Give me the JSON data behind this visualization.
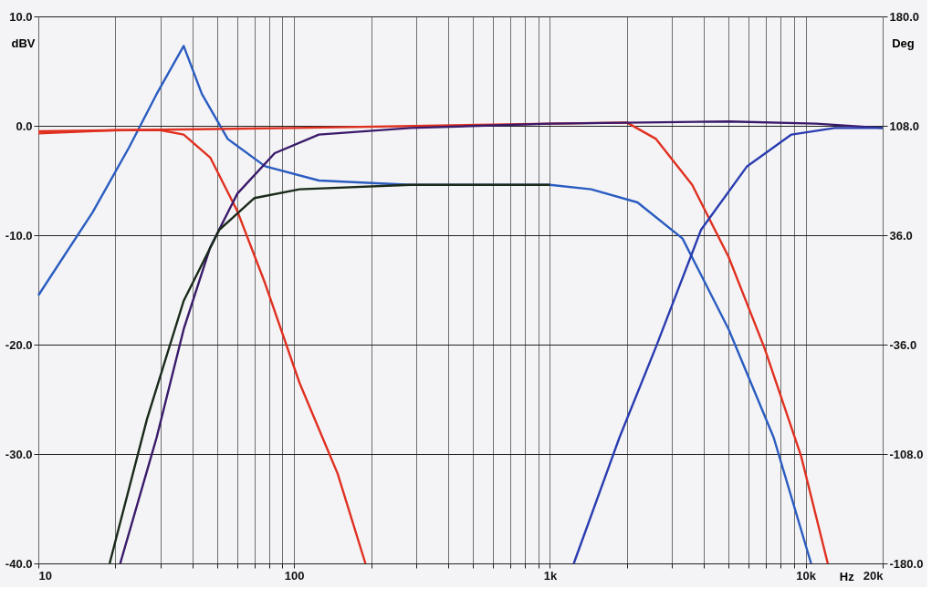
{
  "chart_data": {
    "type": "line",
    "xlabel": "Hz",
    "ylabel": "dBV",
    "y2label": "Deg",
    "log": "x",
    "grid": true,
    "legend": false,
    "line_style": "solid",
    "xlim": [
      10,
      20000
    ],
    "xticks": [
      {
        "value": 10,
        "label": "10"
      },
      {
        "value": 20,
        "label": null
      },
      {
        "value": 30,
        "label": null
      },
      {
        "value": 40,
        "label": null
      },
      {
        "value": 50,
        "label": null
      },
      {
        "value": 60,
        "label": null
      },
      {
        "value": 70,
        "label": null
      },
      {
        "value": 80,
        "label": null
      },
      {
        "value": 90,
        "label": null
      },
      {
        "value": 100,
        "label": "100"
      },
      {
        "value": 200,
        "label": null
      },
      {
        "value": 300,
        "label": null
      },
      {
        "value": 400,
        "label": null
      },
      {
        "value": 500,
        "label": null
      },
      {
        "value": 600,
        "label": null
      },
      {
        "value": 700,
        "label": null
      },
      {
        "value": 800,
        "label": null
      },
      {
        "value": 900,
        "label": null
      },
      {
        "value": 1000,
        "label": "1k"
      },
      {
        "value": 2000,
        "label": null
      },
      {
        "value": 3000,
        "label": null
      },
      {
        "value": 4000,
        "label": null
      },
      {
        "value": 5000,
        "label": null
      },
      {
        "value": 6000,
        "label": null
      },
      {
        "value": 7000,
        "label": null
      },
      {
        "value": 8000,
        "label": null
      },
      {
        "value": 9000,
        "label": null
      },
      {
        "value": 10000,
        "label": "10k"
      },
      {
        "value": 20000,
        "label": "20k"
      }
    ],
    "ylim": [
      -40,
      10
    ],
    "yticks": [
      {
        "value": 10,
        "label": "10.0"
      },
      {
        "value": 0,
        "label": "0.0"
      },
      {
        "value": -10,
        "label": "-10.0"
      },
      {
        "value": -20,
        "label": "-20.0"
      },
      {
        "value": -30,
        "label": "-30.0"
      },
      {
        "value": -40,
        "label": "-40.0"
      }
    ],
    "y2lim": [
      -180,
      180
    ],
    "y2ticks": [
      {
        "value": 180,
        "label": "180.0"
      },
      {
        "value": 108,
        "label": "108.0"
      },
      {
        "value": 36,
        "label": "36.0"
      },
      {
        "value": -36,
        "label": "-36.0"
      },
      {
        "value": -108,
        "label": "-108.0"
      },
      {
        "value": -180,
        "label": "-180.0"
      }
    ],
    "series": [
      {
        "color": "#2a5cc0",
        "x": [
          10,
          16.3,
          22.6,
          29,
          37,
          43.6,
          55,
          77,
          125,
          285,
          1000,
          1450,
          2200,
          3300,
          5000,
          7500,
          10500
        ],
        "values": [
          -15.5,
          -7.9,
          -2,
          2.9,
          7.3,
          2.9,
          -1.2,
          -3.7,
          -5,
          -5.4,
          -5.4,
          -5.8,
          -7,
          -10.3,
          -18.6,
          -28.5,
          -40
        ]
      },
      {
        "color": "#e03020",
        "x": [
          10,
          20,
          30,
          37,
          47,
          60,
          77,
          105,
          148,
          190
        ],
        "values": [
          -0.7,
          -0.4,
          -0.4,
          -0.8,
          -2.9,
          -7.8,
          -14.4,
          -23.5,
          -31.8,
          -40
        ]
      },
      {
        "color": "#e03020",
        "x": [
          10,
          100,
          1000,
          2000,
          2600,
          3600,
          5000,
          6900,
          9600,
          12200
        ],
        "values": [
          -0.5,
          -0.2,
          0.2,
          0.3,
          -1.2,
          -5.4,
          -12,
          -20.3,
          -30.2,
          -40
        ]
      },
      {
        "color": "#3a1a6a",
        "x": [
          20.9,
          29,
          37,
          47,
          60,
          84,
          125,
          285,
          1000,
          5000,
          11000,
          20000
        ],
        "values": [
          -40,
          -28.5,
          -18.6,
          -11.1,
          -6.2,
          -2.5,
          -0.8,
          -0.2,
          0.2,
          0.4,
          0.2,
          -0.2
        ]
      },
      {
        "color": "#1a2a1a",
        "x": [
          19,
          26.6,
          37,
          51,
          70,
          105,
          285,
          1000
        ],
        "values": [
          -40,
          -26.8,
          -16,
          -9.5,
          -6.6,
          -5.8,
          -5.4,
          -5.4
        ]
      },
      {
        "color": "#2a3cb0",
        "x": [
          1240,
          1870,
          2600,
          3900,
          5900,
          8800,
          13000,
          20000
        ],
        "values": [
          -40,
          -28.5,
          -20.2,
          -9.5,
          -3.7,
          -0.8,
          -0.2,
          -0.2
        ]
      }
    ]
  }
}
